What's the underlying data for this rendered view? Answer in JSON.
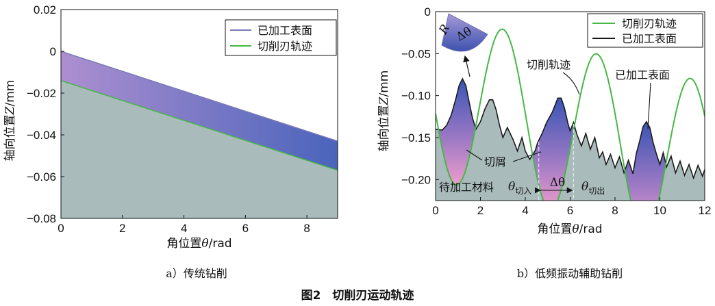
{
  "figure_caption": "图2　切削刃运动轨迹",
  "chart_data": [
    {
      "id": "a",
      "type": "area",
      "caption": "a）传统钻削",
      "xlabel_prefix": "角位置",
      "xlabel_var": "θ",
      "xlabel_unit": "/rad",
      "ylabel_prefix": "轴向位置",
      "ylabel_var": "Z",
      "ylabel_unit": "/mm",
      "xlim": [
        0,
        9
      ],
      "ylim": [
        -0.08,
        0.02
      ],
      "x_ticks": [
        0,
        2,
        4,
        6,
        8
      ],
      "x_tick_labels": [
        "0",
        "2",
        "4",
        "6",
        "8"
      ],
      "y_ticks": [
        0.02,
        0,
        -0.02,
        -0.04,
        -0.06,
        -0.08
      ],
      "y_tick_labels": [
        "0.02",
        "0",
        "−0.02",
        "−0.04",
        "−0.06",
        "−0.08"
      ],
      "legend_position": "top-right",
      "series": [
        {
          "name": "已加工表面",
          "color": "#7a7ab8",
          "x": [
            0,
            9
          ],
          "y": [
            0.0,
            -0.043
          ]
        },
        {
          "name": "切削刃轨迹",
          "color": "#45b845",
          "x": [
            0,
            9
          ],
          "y": [
            -0.014,
            -0.057
          ]
        }
      ]
    },
    {
      "id": "b",
      "type": "line",
      "caption": "b）低频振动辅助钻削",
      "xlabel_prefix": "角位置",
      "xlabel_var": "θ",
      "xlabel_unit": "/rad",
      "ylabel_prefix": "轴向位置",
      "ylabel_var": "Z",
      "ylabel_unit": "/mm",
      "xlim": [
        0,
        12
      ],
      "ylim": [
        -0.225,
        0
      ],
      "x_ticks": [
        0,
        2,
        4,
        6,
        8,
        10,
        12
      ],
      "x_tick_labels": [
        "0",
        "2",
        "4",
        "6",
        "8",
        "10",
        "12"
      ],
      "y_ticks": [
        0,
        -0.05,
        -0.1,
        -0.15,
        -0.2
      ],
      "y_tick_labels": [
        "0",
        "−0.05",
        "−0.10",
        "−0.15",
        "−0.20"
      ],
      "legend_position": "top-right",
      "series": [
        {
          "name": "切削刃轨迹",
          "color": "#45b845",
          "model": "z = -0.1 - 0.007*theta + 0.1*cos(1.5*theta - 4.5)",
          "extrema": [
            [
              0.0,
              -0.08
            ],
            [
              1.02,
              -0.207
            ],
            [
              3.07,
              -0.02
            ],
            [
              5.1,
              -0.193
            ],
            [
              7.2,
              -0.047
            ],
            [
              9.4,
              -0.22
            ],
            [
              11.55,
              -0.075
            ]
          ]
        },
        {
          "name": "已加工表面",
          "color": "#1a1a1a",
          "x": [
            0,
            0.3,
            0.5,
            0.7,
            0.9,
            1.05,
            1.2,
            1.35,
            1.5,
            1.65,
            1.8,
            2.0,
            2.2,
            2.4,
            2.55,
            2.7,
            2.85,
            3.0,
            3.2,
            3.45,
            3.65,
            3.85,
            4.0,
            4.2,
            4.45,
            4.55,
            4.75,
            4.95,
            5.2,
            5.45,
            5.6,
            5.75,
            5.9,
            6.0,
            6.15,
            6.3,
            6.5,
            6.7,
            6.9,
            7.1,
            7.3,
            7.45,
            7.6,
            7.8,
            8.0,
            8.2,
            8.4,
            8.6,
            8.8,
            8.95,
            9.1,
            9.25,
            9.4,
            9.55,
            9.7,
            9.85,
            10.0,
            10.15,
            10.3,
            10.5,
            10.7,
            10.9,
            11.1,
            11.3,
            11.5,
            11.7,
            11.9,
            12.0
          ],
          "y": [
            -0.14,
            -0.141,
            -0.135,
            -0.123,
            -0.104,
            -0.088,
            -0.08,
            -0.088,
            -0.108,
            -0.127,
            -0.14,
            -0.131,
            -0.116,
            -0.105,
            -0.105,
            -0.117,
            -0.135,
            -0.15,
            -0.138,
            -0.152,
            -0.166,
            -0.15,
            -0.166,
            -0.176,
            -0.165,
            -0.156,
            -0.145,
            -0.132,
            -0.12,
            -0.103,
            -0.103,
            -0.115,
            -0.133,
            -0.142,
            -0.132,
            -0.146,
            -0.16,
            -0.145,
            -0.164,
            -0.15,
            -0.174,
            -0.167,
            -0.182,
            -0.17,
            -0.186,
            -0.173,
            -0.192,
            -0.177,
            -0.193,
            -0.169,
            -0.154,
            -0.137,
            -0.131,
            -0.138,
            -0.156,
            -0.17,
            -0.182,
            -0.168,
            -0.185,
            -0.172,
            -0.192,
            -0.178,
            -0.195,
            -0.182,
            -0.198,
            -0.183,
            -0.196,
            -0.188
          ]
        }
      ],
      "annotations": {
        "trajectory_label": "切削轨迹",
        "surface_label": "已加工表面",
        "chip_label": "切屑",
        "material_label": "待加工材料",
        "theta_in_var": "θ",
        "theta_in_sub": "切入",
        "theta_out_var": "θ",
        "theta_out_sub": "切出",
        "delta_theta": "Δθ",
        "inset_r": "R",
        "inset_delta": "Δθ",
        "theta_in_x": 4.6,
        "theta_out_x": 6.15
      }
    }
  ]
}
